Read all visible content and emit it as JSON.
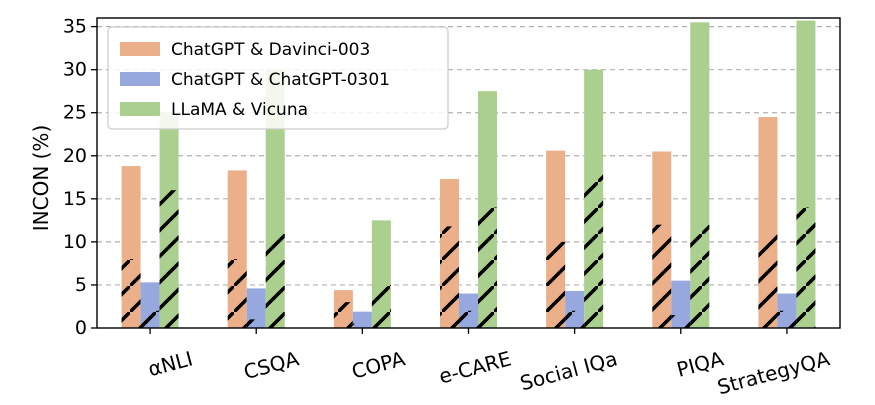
{
  "chart_data": {
    "type": "bar",
    "title": "",
    "xlabel": "",
    "ylabel": "INCON (%)",
    "ylim": [
      0,
      36
    ],
    "yticks": [
      0,
      5,
      10,
      15,
      20,
      25,
      30,
      35
    ],
    "grid": "horizontal dashed",
    "legend_position": "top-left",
    "categories": [
      "αNLI",
      "CSQA",
      "COPA",
      "e-CARE",
      "Social IQa",
      "PIQA",
      "StrategyQA"
    ],
    "series": [
      {
        "name": "ChatGPT & Davinci-003",
        "color": "#EBB08A",
        "values": [
          18.8,
          18.3,
          4.4,
          17.3,
          20.6,
          20.5,
          24.5
        ],
        "hatched": [
          8.0,
          8.0,
          3.0,
          11.8,
          10.0,
          12.0,
          11.0
        ]
      },
      {
        "name": "ChatGPT & ChatGPT-0301",
        "color": "#97A8DE",
        "values": [
          5.3,
          4.6,
          1.9,
          4.0,
          4.3,
          5.5,
          4.0
        ],
        "hatched": [
          2.0,
          1.0,
          0.5,
          2.0,
          2.0,
          1.5,
          2.0
        ]
      },
      {
        "name": "LLaMA & Vicuna",
        "color": "#AACF8F",
        "values": [
          25.0,
          30.0,
          12.5,
          27.5,
          30.0,
          35.5,
          35.7
        ],
        "hatched": [
          16.0,
          11.0,
          5.0,
          14.0,
          18.0,
          12.0,
          14.0
        ]
      }
    ]
  }
}
